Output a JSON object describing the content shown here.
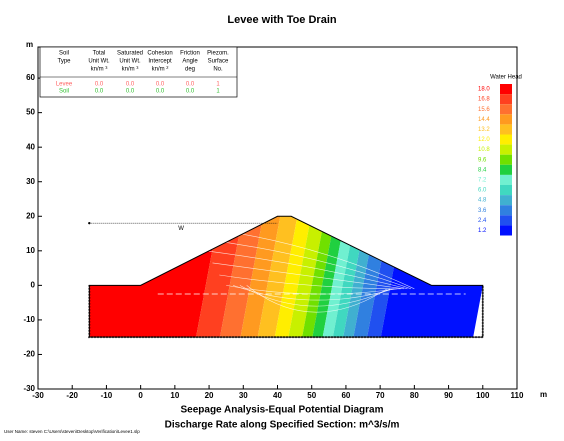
{
  "chart_data": {
    "type": "contour",
    "title": "Levee with Toe Drain",
    "xlabel": "Seepage Analysis-Equal Potential Diagram",
    "subtitle": "Discharge Rate along Specified Section:    m^3/s/m",
    "footnote": "User Name: steven   C:\\Users\\steven\\Desktop\\Verification\\Levee1.slp",
    "x_unit": "m",
    "y_unit": "m",
    "xlim": [
      -30,
      110
    ],
    "xticks": [
      -30,
      -20,
      -10,
      0,
      10,
      20,
      30,
      40,
      50,
      60,
      70,
      80,
      90,
      100,
      110
    ],
    "ylim": [
      -30,
      69
    ],
    "yticks": [
      -30,
      -20,
      -10,
      0,
      10,
      20,
      30,
      40,
      50,
      60
    ],
    "annotations": [
      "W"
    ],
    "legend": {
      "title": "Water Head",
      "levels": [
        18.0,
        16.8,
        15.6,
        14.4,
        13.2,
        12.0,
        10.8,
        9.6,
        8.4,
        7.2,
        6.0,
        4.8,
        3.6,
        2.4,
        1.2
      ],
      "level_labels": [
        "18.0",
        "16.8",
        "15.6",
        "14.4",
        "13.2",
        "12.0",
        "10.8",
        "9.6",
        "8.4",
        "7.2",
        "6.0",
        "4.8",
        "3.6",
        "2.4",
        "1.2"
      ],
      "colors": [
        "#ff0000",
        "#ff4020",
        "#ff7030",
        "#ff9a20",
        "#ffc020",
        "#ffee00",
        "#c8f000",
        "#70e000",
        "#20d040",
        "#70f0d0",
        "#40d8c0",
        "#40b0d0",
        "#3080e0",
        "#2050f0",
        "#0010ff"
      ]
    },
    "table": {
      "headers": [
        [
          "Soil",
          "Type"
        ],
        [
          "Total",
          "Unit Wt.",
          "kn/m ³"
        ],
        [
          "Saturated",
          "Unit Wt.",
          "kn/m ³"
        ],
        [
          "Cohesion",
          "Intercept",
          "kn/m ²"
        ],
        [
          "Friction",
          "Angle",
          "deg"
        ],
        [
          "Piezom.",
          "Surface",
          "No."
        ]
      ],
      "rows": [
        {
          "color": "#ff6060",
          "cells": [
            "Levee",
            "0.0",
            "0.0",
            "0.0",
            "0.0",
            "1"
          ]
        },
        {
          "color": "#30c030",
          "cells": [
            "Soil",
            "0.0",
            "0.0",
            "0.0",
            "0.0",
            "1"
          ]
        }
      ]
    }
  }
}
